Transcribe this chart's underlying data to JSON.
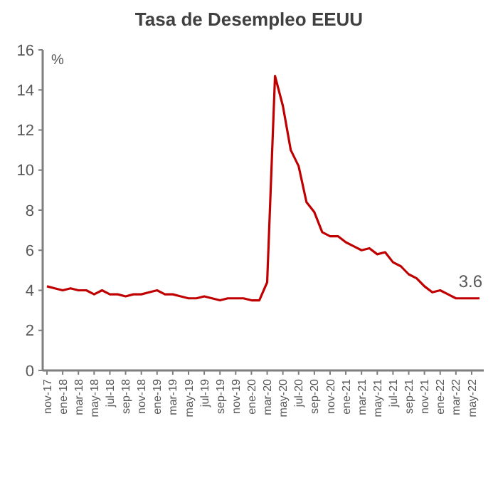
{
  "chart_data": {
    "type": "line",
    "title": "Tasa de Desempleo EEUU",
    "ylabel": "%",
    "categories": [
      "nov-17",
      null,
      "ene-18",
      null,
      "mar-18",
      null,
      "may-18",
      null,
      "jul-18",
      null,
      "sep-18",
      null,
      "nov-18",
      null,
      "ene-19",
      null,
      "mar-19",
      null,
      "may-19",
      null,
      "jul-19",
      null,
      "sep-19",
      null,
      "nov-19",
      null,
      "ene-20",
      null,
      "mar-20",
      null,
      "may-20",
      null,
      "jul-20",
      null,
      "sep-20",
      null,
      "nov-20",
      null,
      "ene-21",
      null,
      "mar-21",
      null,
      "may-21",
      null,
      "jul-21",
      null,
      "sep-21",
      null,
      "nov-21",
      null,
      "ene-22",
      null,
      "mar-22",
      null,
      "may-22",
      null
    ],
    "series": [
      {
        "color": "#c00000",
        "values": [
          4.2,
          4.1,
          4.0,
          4.1,
          4.0,
          4.0,
          3.8,
          4.0,
          3.8,
          3.8,
          3.7,
          3.8,
          3.8,
          3.9,
          4.0,
          3.8,
          3.8,
          3.7,
          3.6,
          3.6,
          3.7,
          3.6,
          3.5,
          3.6,
          3.6,
          3.6,
          3.5,
          3.5,
          4.4,
          14.7,
          13.2,
          11.0,
          10.2,
          8.4,
          7.9,
          6.9,
          6.7,
          6.7,
          6.4,
          6.2,
          6.0,
          6.1,
          5.8,
          5.9,
          5.4,
          5.2,
          4.8,
          4.6,
          4.2,
          3.9,
          4.0,
          3.8,
          3.6,
          3.6,
          3.6,
          3.6
        ],
        "value_labels": [
          null,
          null,
          null,
          null,
          null,
          null,
          null,
          null,
          null,
          null,
          null,
          null,
          null,
          null,
          null,
          null,
          null,
          null,
          null,
          null,
          null,
          null,
          null,
          null,
          null,
          null,
          null,
          null,
          null,
          null,
          null,
          null,
          null,
          null,
          null,
          null,
          null,
          null,
          null,
          null,
          null,
          null,
          null,
          null,
          null,
          null,
          null,
          null,
          null,
          null,
          null,
          null,
          null,
          null,
          null,
          "3.6"
        ]
      }
    ],
    "ylim": [
      0,
      16
    ],
    "yticks": [
      0,
      2,
      4,
      6,
      8,
      10,
      12,
      14,
      16
    ],
    "grid": false,
    "marker": "none",
    "line_style": "solid"
  }
}
